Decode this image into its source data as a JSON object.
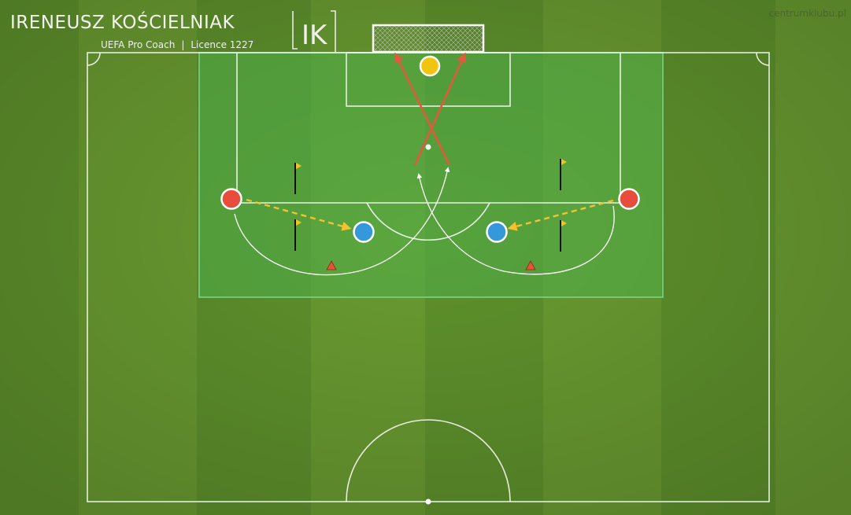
{
  "header": {
    "coach_name": "IRENEUSZ KOŚCIELNIAK",
    "coach_role": "UEFA Pro Coach",
    "separator": "|",
    "licence": "Licence 1227",
    "logo_text": "IK",
    "website": "centrumklubu.pl"
  },
  "colors": {
    "grass_light": "#6a9c31",
    "grass_dark": "#5b8d2a",
    "zone_fill": "#4fae4a",
    "zone_border": "#7fd58a",
    "line": "#ffffff",
    "attacker_red": "#e84c3d",
    "teammate_blue": "#3498db",
    "keeper_yellow": "#f1c40f",
    "shot_arrow": "#e05a3c",
    "pass_arrow": "#f2c230",
    "cone": "#e2563a",
    "pole_flag": "#f4c321"
  },
  "legend_icons": [
    "red-player-icon",
    "blue-player-icon",
    "yellow-goalkeeper-icon",
    "cone-icon",
    "flag-pole-icon"
  ]
}
